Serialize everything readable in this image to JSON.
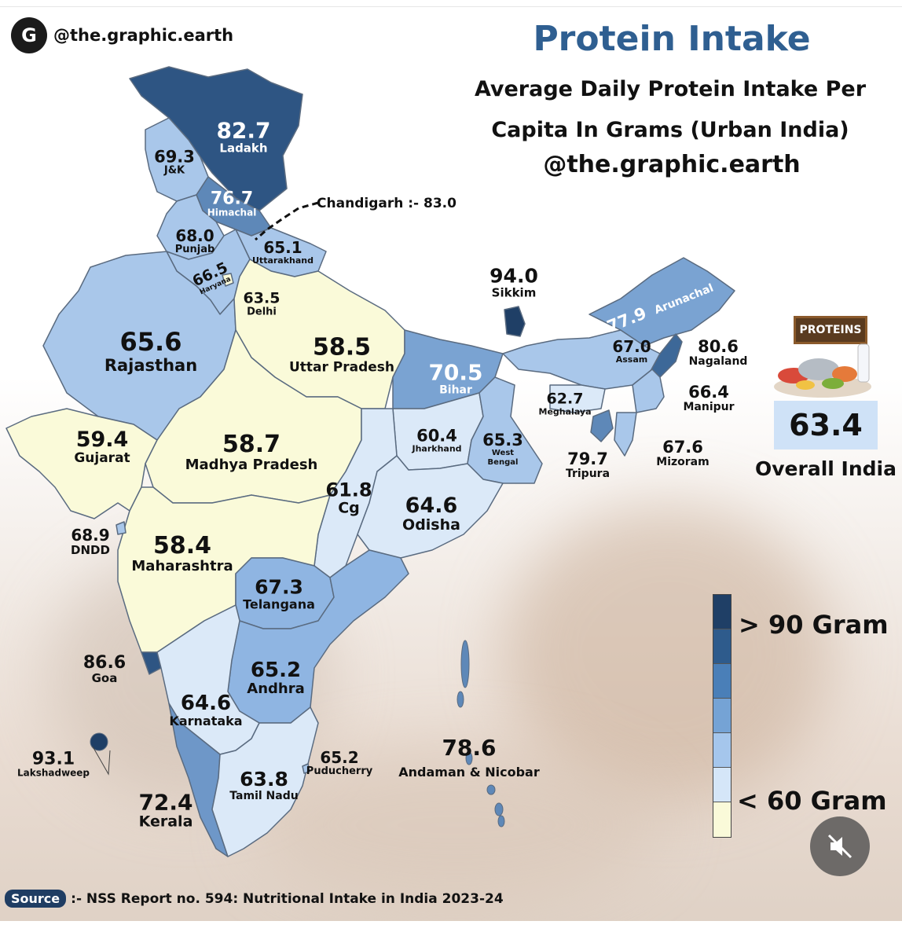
{
  "header": {
    "handle": "@the.graphic.earth",
    "title": "Protein Intake",
    "subtitle_line1": "Average Daily Protein Intake Per",
    "subtitle_line2": "Capita In Grams (Urban India)",
    "handle_large": "@the.graphic.earth"
  },
  "legend": {
    "high_label": "> 90 Gram",
    "low_label": "< 60 Gram",
    "colors": [
      "#1f3f66",
      "#2e5b8c",
      "#4a7fb8",
      "#75a3d5",
      "#a5c6ec",
      "#d5e6f8",
      "#fafad9"
    ]
  },
  "overall": {
    "value": "63.4",
    "label": "Overall India",
    "sign": "PROTEINS"
  },
  "chandigarh_label": "Chandigarh :- 83.0",
  "regions": [
    {
      "id": "ladakh",
      "name": "Ladakh",
      "value": "82.7",
      "color": "#2e5583"
    },
    {
      "id": "jk",
      "name": "J&K",
      "value": "69.3",
      "color": "#a9c7ea"
    },
    {
      "id": "himachal",
      "name": "Himachal",
      "value": "76.7",
      "color": "#5e88b8"
    },
    {
      "id": "punjab",
      "name": "Punjab",
      "value": "68.0",
      "color": "#a9c7ea"
    },
    {
      "id": "uttarakhand",
      "name": "Uttarakhand",
      "value": "65.1",
      "color": "#a9c7ea"
    },
    {
      "id": "haryana",
      "name": "Haryana",
      "value": "66.5",
      "color": "#a9c7ea"
    },
    {
      "id": "delhi",
      "name": "Delhi",
      "value": "63.5",
      "color": "#fafad9"
    },
    {
      "id": "rajasthan",
      "name": "Rajasthan",
      "value": "65.6",
      "color": "#a9c7ea"
    },
    {
      "id": "up",
      "name": "Uttar Pradesh",
      "value": "58.5",
      "color": "#fafad9"
    },
    {
      "id": "bihar",
      "name": "Bihar",
      "value": "70.5",
      "color": "#7aa3d2"
    },
    {
      "id": "sikkim",
      "name": "Sikkim",
      "value": "94.0",
      "color": "#1f3f66"
    },
    {
      "id": "arunachal",
      "name": "Arunachal",
      "value": "77.9",
      "color": "#7aa3d2"
    },
    {
      "id": "assam",
      "name": "Assam",
      "value": "67.0",
      "color": "#a9c7ea"
    },
    {
      "id": "nagaland",
      "name": "Nagaland",
      "value": "80.6",
      "color": "#3d6898"
    },
    {
      "id": "meghalaya",
      "name": "Meghalaya",
      "value": "62.7",
      "color": "#dbe9f8"
    },
    {
      "id": "manipur",
      "name": "Manipur",
      "value": "66.4",
      "color": "#a9c7ea"
    },
    {
      "id": "tripura",
      "name": "Tripura",
      "value": "79.7",
      "color": "#5e88b8"
    },
    {
      "id": "mizoram",
      "name": "Mizoram",
      "value": "67.6",
      "color": "#a9c7ea"
    },
    {
      "id": "gujarat",
      "name": "Gujarat",
      "value": "59.4",
      "color": "#fafad9"
    },
    {
      "id": "mp",
      "name": "Madhya Pradesh",
      "value": "58.7",
      "color": "#fafad9"
    },
    {
      "id": "jharkhand",
      "name": "Jharkhand",
      "value": "60.4",
      "color": "#dbe9f8"
    },
    {
      "id": "westbengal",
      "name": "West Bengal",
      "value": "65.3",
      "color": "#a9c7ea"
    },
    {
      "id": "cg",
      "name": "Cg",
      "value": "61.8",
      "color": "#dbe9f8"
    },
    {
      "id": "odisha",
      "name": "Odisha",
      "value": "64.6",
      "color": "#dbe9f8"
    },
    {
      "id": "dndd",
      "name": "DNDD",
      "value": "68.9",
      "color": "#a9c7ea"
    },
    {
      "id": "maharashtra",
      "name": "Maharashtra",
      "value": "58.4",
      "color": "#fafad9"
    },
    {
      "id": "telangana",
      "name": "Telangana",
      "value": "67.3",
      "color": "#8fb5e2"
    },
    {
      "id": "goa",
      "name": "Goa",
      "value": "86.6",
      "color": "#2e5583"
    },
    {
      "id": "andhra",
      "name": "Andhra",
      "value": "65.2",
      "color": "#8fb5e2"
    },
    {
      "id": "karnataka",
      "name": "Karnataka",
      "value": "64.6",
      "color": "#dbe9f8"
    },
    {
      "id": "lakshadweep",
      "name": "Lakshadweep",
      "value": "93.1",
      "color": "#1f3f66"
    },
    {
      "id": "kerala",
      "name": "Kerala",
      "value": "72.4",
      "color": "#6e97c8"
    },
    {
      "id": "tamilnadu",
      "name": "Tamil Nadu",
      "value": "63.8",
      "color": "#dbe9f8"
    },
    {
      "id": "puducherry",
      "name": "Puducherry",
      "value": "65.2",
      "color": "#a9c7ea"
    },
    {
      "id": "andaman",
      "name": "Andaman & Nicobar",
      "value": "78.6",
      "color": "#5e88b8"
    }
  ],
  "source": {
    "badge": "Source",
    "text": ":- NSS Report no. 594: Nutritional Intake in India 2023-24"
  }
}
